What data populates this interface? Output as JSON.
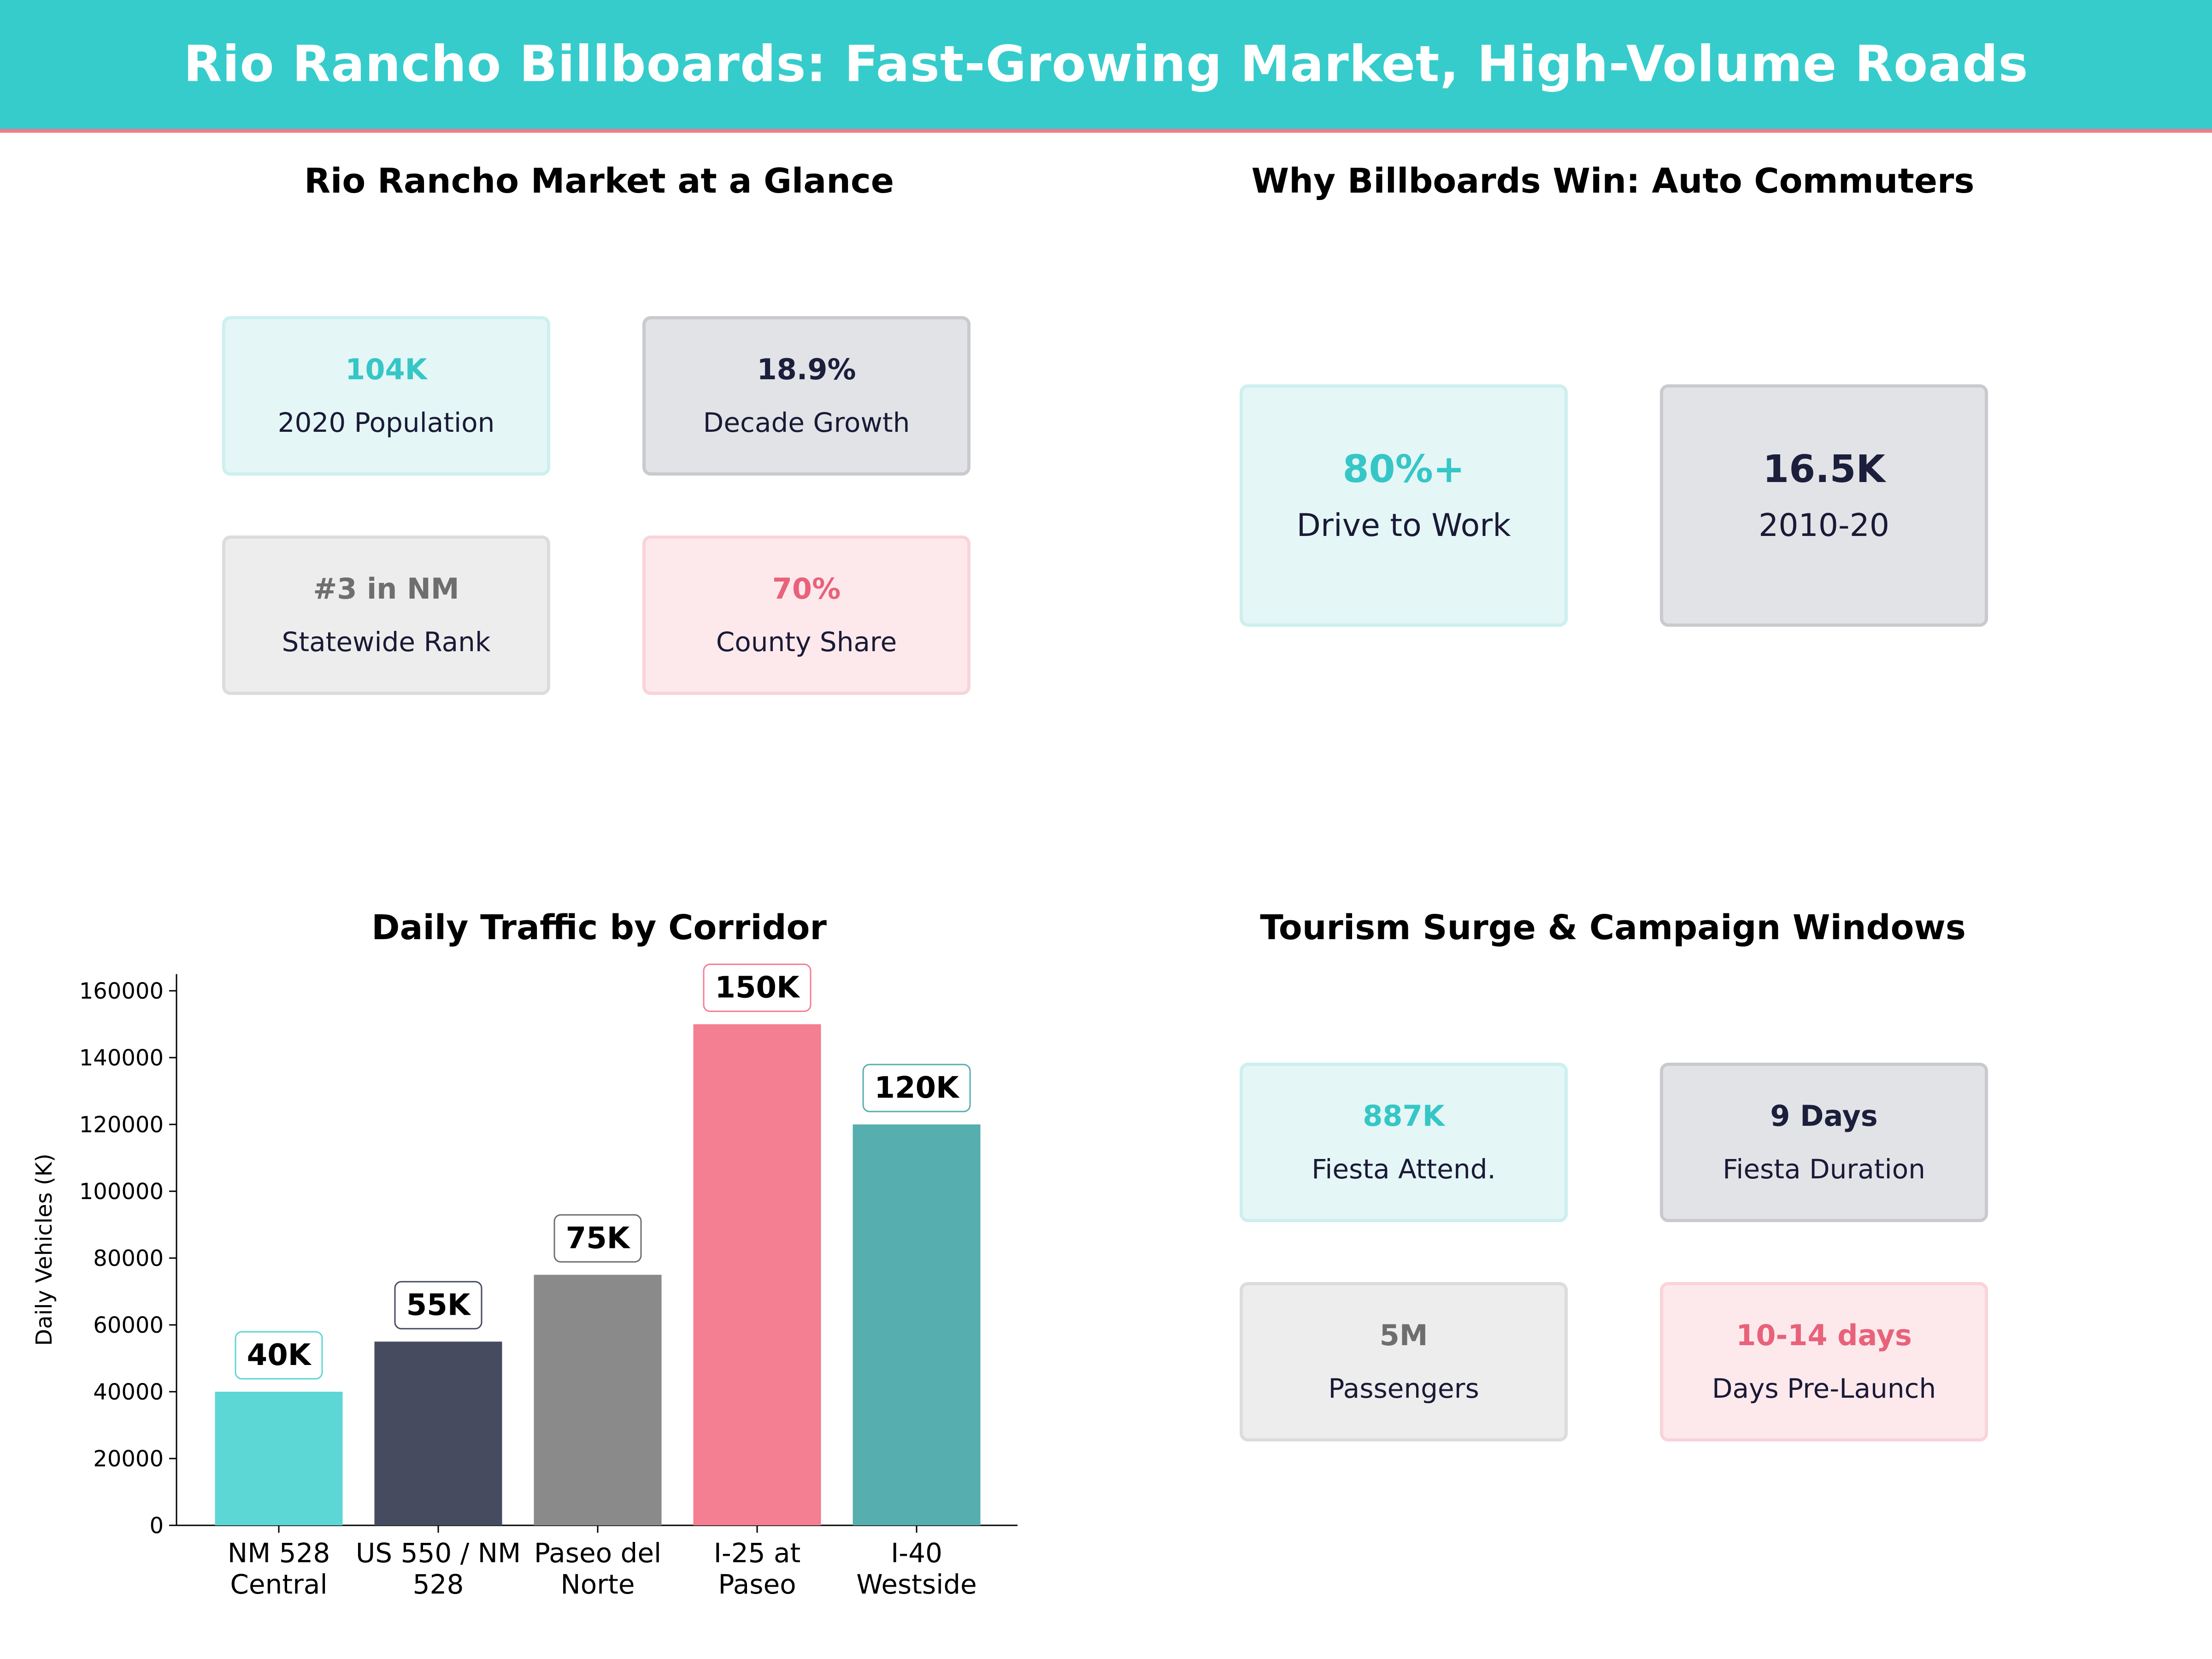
{
  "header": {
    "title": "Rio Rancho Billboards: Fast-Growing Market, High-Volume Roads"
  },
  "colors": {
    "accent": "#36CCCC",
    "header_rule": "#F07A8C"
  },
  "market": {
    "title": "Rio Rancho Market at a Glance",
    "cards": [
      {
        "value": "104K",
        "label": "2020 Population",
        "style": "teal"
      },
      {
        "value": "18.9%",
        "label": "Decade Growth",
        "style": "navy"
      },
      {
        "value": "#3 in NM",
        "label": "Statewide Rank",
        "style": "gray"
      },
      {
        "value": "70%",
        "label": "County Share",
        "style": "pink"
      }
    ]
  },
  "commuters": {
    "title": "Why Billboards Win: Auto Commuters",
    "cards": [
      {
        "value": "80%+",
        "label": "Drive to Work",
        "style": "teal"
      },
      {
        "value": "16.5K",
        "label": "2010-20",
        "style": "navy"
      }
    ]
  },
  "tourism": {
    "title": "Tourism Surge & Campaign Windows",
    "cards": [
      {
        "value": "887K",
        "label": "Fiesta Attend.",
        "style": "teal"
      },
      {
        "value": "9 Days",
        "label": "Fiesta Duration",
        "style": "navy"
      },
      {
        "value": "5M",
        "label": "Passengers",
        "style": "gray"
      },
      {
        "value": "10-14 days",
        "label": "Days Pre-Launch",
        "style": "pink"
      }
    ]
  },
  "chart_data": {
    "type": "bar",
    "title": "Daily Traffic by Corridor",
    "ylabel": "Daily Vehicles (K)",
    "xlabel": "",
    "ylim": [
      0,
      165000
    ],
    "yticks": [
      0,
      20000,
      40000,
      60000,
      80000,
      100000,
      120000,
      140000,
      160000
    ],
    "categories": [
      [
        "NM 528",
        "Central"
      ],
      [
        "US 550 / NM",
        "528"
      ],
      [
        "Paseo del",
        "Norte"
      ],
      [
        "I-25 at",
        "Paseo"
      ],
      [
        "I-40",
        "Westside"
      ]
    ],
    "values": [
      40000,
      55000,
      75000,
      150000,
      120000
    ],
    "data_labels": [
      "40K",
      "55K",
      "75K",
      "150K",
      "120K"
    ],
    "bar_colors": [
      "#5DD6D6",
      "#464B60",
      "#8A8A8A",
      "#F47E92",
      "#56AEAE"
    ],
    "label_border_colors": [
      "#5DD6D6",
      "#464B60",
      "#6E6E6E",
      "#F47E92",
      "#56AEAE"
    ],
    "grid": false,
    "legend": "none"
  }
}
